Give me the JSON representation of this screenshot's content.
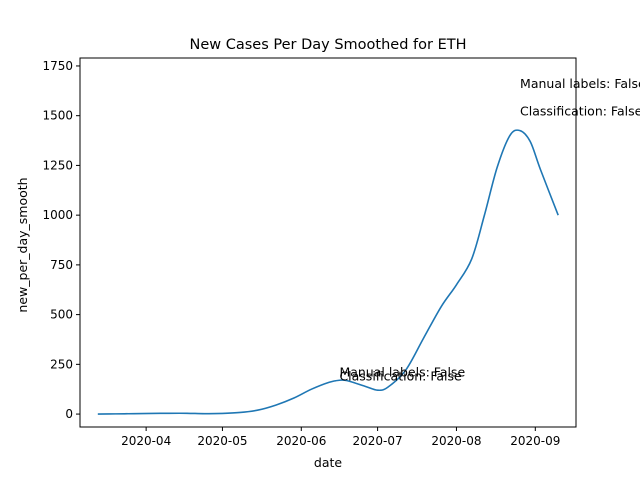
{
  "chart_data": {
    "type": "line",
    "title": "New Cases Per Day Smoothed for ETH",
    "xlabel": "date",
    "ylabel": "new_per_day_smooth",
    "xlim": [
      "2020-03-06",
      "2020-09-17"
    ],
    "ylim": [
      -65,
      1790
    ],
    "grid": false,
    "line_color": "#1f77b4",
    "x_ticks": [
      "2020-04-01",
      "2020-05-01",
      "2020-06-01",
      "2020-07-01",
      "2020-08-01",
      "2020-09-01"
    ],
    "x_tick_labels": [
      "2020-04",
      "2020-05",
      "2020-06",
      "2020-07",
      "2020-08",
      "2020-09"
    ],
    "y_ticks": [
      0,
      250,
      500,
      750,
      1000,
      1250,
      1500,
      1750
    ],
    "y_tick_labels": [
      "0",
      "250",
      "500",
      "750",
      "1000",
      "1250",
      "1500",
      "1750"
    ],
    "series": [
      {
        "x": [
          "2020-03-13",
          "2020-03-20",
          "2020-03-27",
          "2020-04-03",
          "2020-04-10",
          "2020-04-17",
          "2020-04-24",
          "2020-05-01",
          "2020-05-08",
          "2020-05-15",
          "2020-05-22",
          "2020-05-29",
          "2020-06-05",
          "2020-06-12",
          "2020-06-16",
          "2020-06-19",
          "2020-06-26",
          "2020-07-01",
          "2020-07-05",
          "2020-07-12",
          "2020-07-19",
          "2020-07-26",
          "2020-08-01",
          "2020-08-07",
          "2020-08-12",
          "2020-08-17",
          "2020-08-22",
          "2020-08-26",
          "2020-08-30",
          "2020-09-03",
          "2020-09-10"
        ],
        "y": [
          0,
          1,
          2,
          3,
          4,
          4,
          2,
          3,
          8,
          20,
          45,
          80,
          125,
          160,
          170,
          168,
          140,
          120,
          135,
          220,
          380,
          540,
          650,
          780,
          1000,
          1240,
          1400,
          1425,
          1370,
          1230,
          1000
        ]
      }
    ],
    "annotations": [
      {
        "text": "Manual labels: False",
        "x": "2020-06-16",
        "y": 190
      },
      {
        "text": "Classification: False",
        "x": "2020-06-16",
        "y": 170
      },
      {
        "text": "Manual labels: False",
        "x": "2020-08-26",
        "y": 1640
      },
      {
        "text": "Classification: False",
        "x": "2020-08-26",
        "y": 1500
      }
    ]
  }
}
